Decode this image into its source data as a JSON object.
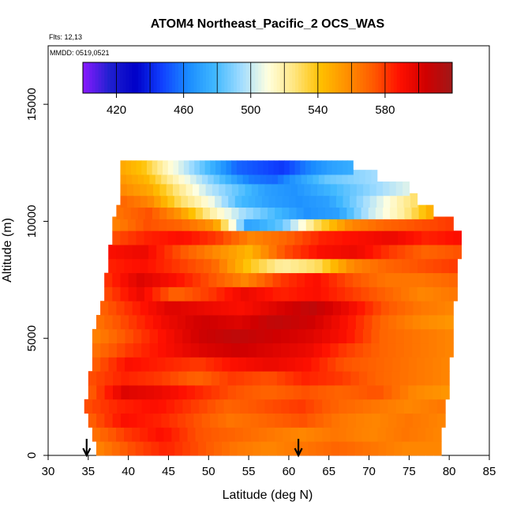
{
  "chart_data": {
    "type": "heatmap",
    "title": "ATOM4 Northeast_Pacific_2 OCS_WAS",
    "annotations": [
      "Flts: 12,13",
      "MMDD: 0519,0521"
    ],
    "xlabel": "Latitude (deg N)",
    "ylabel": "Altitude (m)",
    "xlim": [
      30,
      85
    ],
    "ylim": [
      0,
      17500
    ],
    "x_ticks": [
      "30",
      "35",
      "40",
      "45",
      "50",
      "55",
      "60",
      "65",
      "70",
      "75",
      "80",
      "85"
    ],
    "y_ticks": [
      "0",
      "5000",
      "10000",
      "15000"
    ],
    "colorbar": {
      "range": [
        400,
        620
      ],
      "tick_labels": [
        "420",
        "460",
        "500",
        "540",
        "580"
      ],
      "tick_values": [
        420,
        460,
        500,
        540,
        580
      ],
      "colors": [
        "#8a1aff",
        "#2020d0",
        "#0000c8",
        "#1040ff",
        "#1a8cff",
        "#40b8ff",
        "#a0dcff",
        "#ffffe0",
        "#ffe680",
        "#ffc000",
        "#ff9000",
        "#ff5a00",
        "#ff1000",
        "#d00000",
        "#a01818"
      ]
    },
    "arrows_at_latitude": [
      34.8,
      61.2
    ],
    "rows": [
      {
        "alt": 300,
        "lat": [
          36,
          79
        ],
        "values": [
          560,
          575,
          585,
          575,
          565,
          560,
          565,
          570,
          565,
          560,
          560
        ]
      },
      {
        "alt": 900,
        "lat": [
          35.5,
          79
        ],
        "values": [
          565,
          580,
          590,
          575,
          570,
          565,
          560,
          565,
          560,
          565,
          560
        ]
      },
      {
        "alt": 1500,
        "lat": [
          35,
          79.5
        ],
        "values": [
          570,
          590,
          585,
          575,
          565,
          570,
          575,
          565,
          560,
          565,
          560
        ]
      },
      {
        "alt": 2100,
        "lat": [
          34.5,
          79.5
        ],
        "values": [
          575,
          585,
          590,
          580,
          570,
          575,
          580,
          570,
          565,
          560,
          565
        ]
      },
      {
        "alt": 2700,
        "lat": [
          35,
          80
        ],
        "values": [
          570,
          600,
          595,
          585,
          575,
          570,
          575,
          570,
          575,
          560,
          555
        ]
      },
      {
        "alt": 3300,
        "lat": [
          35,
          80
        ],
        "values": [
          575,
          585,
          580,
          570,
          580,
          575,
          585,
          580,
          570,
          565,
          560
        ]
      },
      {
        "alt": 3900,
        "lat": [
          35.5,
          80
        ],
        "values": [
          570,
          590,
          585,
          580,
          590,
          595,
          590,
          575,
          570,
          565,
          560
        ]
      },
      {
        "alt": 4500,
        "lat": [
          35.5,
          80.5
        ],
        "values": [
          565,
          580,
          590,
          600,
          605,
          600,
          595,
          580,
          570,
          565,
          560
        ]
      },
      {
        "alt": 5100,
        "lat": [
          35.5,
          80.5
        ],
        "values": [
          560,
          575,
          590,
          605,
          610,
          605,
          600,
          590,
          570,
          565,
          560
        ]
      },
      {
        "alt": 5700,
        "lat": [
          36,
          80.5
        ],
        "values": [
          565,
          580,
          595,
          605,
          600,
          610,
          605,
          590,
          570,
          560,
          555
        ]
      },
      {
        "alt": 6300,
        "lat": [
          36.5,
          80.5
        ],
        "values": [
          570,
          585,
          600,
          595,
          590,
          600,
          610,
          595,
          575,
          565,
          560
        ]
      },
      {
        "alt": 6900,
        "lat": [
          37,
          81
        ],
        "values": [
          575,
          595,
          570,
          580,
          595,
          585,
          590,
          580,
          570,
          560,
          565
        ]
      },
      {
        "alt": 7500,
        "lat": [
          37,
          81
        ],
        "values": [
          580,
          600,
          590,
          575,
          560,
          580,
          590,
          575,
          565,
          565,
          570
        ]
      },
      {
        "alt": 8100,
        "lat": [
          37.5,
          81
        ],
        "values": [
          585,
          590,
          580,
          570,
          540,
          520,
          530,
          560,
          570,
          575,
          580
        ]
      },
      {
        "alt": 8700,
        "lat": [
          37.5,
          81.5
        ],
        "values": [
          590,
          595,
          575,
          560,
          545,
          575,
          590,
          595,
          580,
          570,
          575
        ]
      },
      {
        "alt": 9300,
        "lat": [
          38,
          81.5
        ],
        "values": [
          575,
          585,
          590,
          580,
          560,
          570,
          585,
          590,
          595,
          585,
          590
        ]
      },
      {
        "alt": 9900,
        "lat": [
          38,
          80.5
        ],
        "values": [
          560,
          575,
          570,
          555,
          470,
          485,
          530,
          560,
          570,
          575,
          580
        ]
      },
      {
        "alt": 10400,
        "lat": [
          38.5,
          78
        ],
        "values": [
          565,
          575,
          555,
          520,
          495,
          480,
          465,
          470,
          500,
          520,
          550
        ]
      },
      {
        "alt": 10900,
        "lat": [
          39,
          76
        ],
        "values": [
          570,
          560,
          530,
          510,
          480,
          470,
          465,
          470,
          490,
          510,
          530
        ]
      },
      {
        "alt": 11400,
        "lat": [
          39,
          75
        ],
        "values": [
          560,
          550,
          525,
          500,
          485,
          470,
          465,
          475,
          485,
          495,
          505
        ]
      },
      {
        "alt": 11900,
        "lat": [
          39,
          71
        ],
        "values": [
          555,
          545,
          520,
          500,
          480,
          460,
          455,
          470,
          485,
          490,
          495
        ]
      },
      {
        "alt": 12300,
        "lat": [
          39,
          68
        ],
        "values": [
          550,
          540,
          515,
          495,
          475,
          455,
          450,
          445,
          460,
          470,
          475
        ]
      }
    ]
  }
}
